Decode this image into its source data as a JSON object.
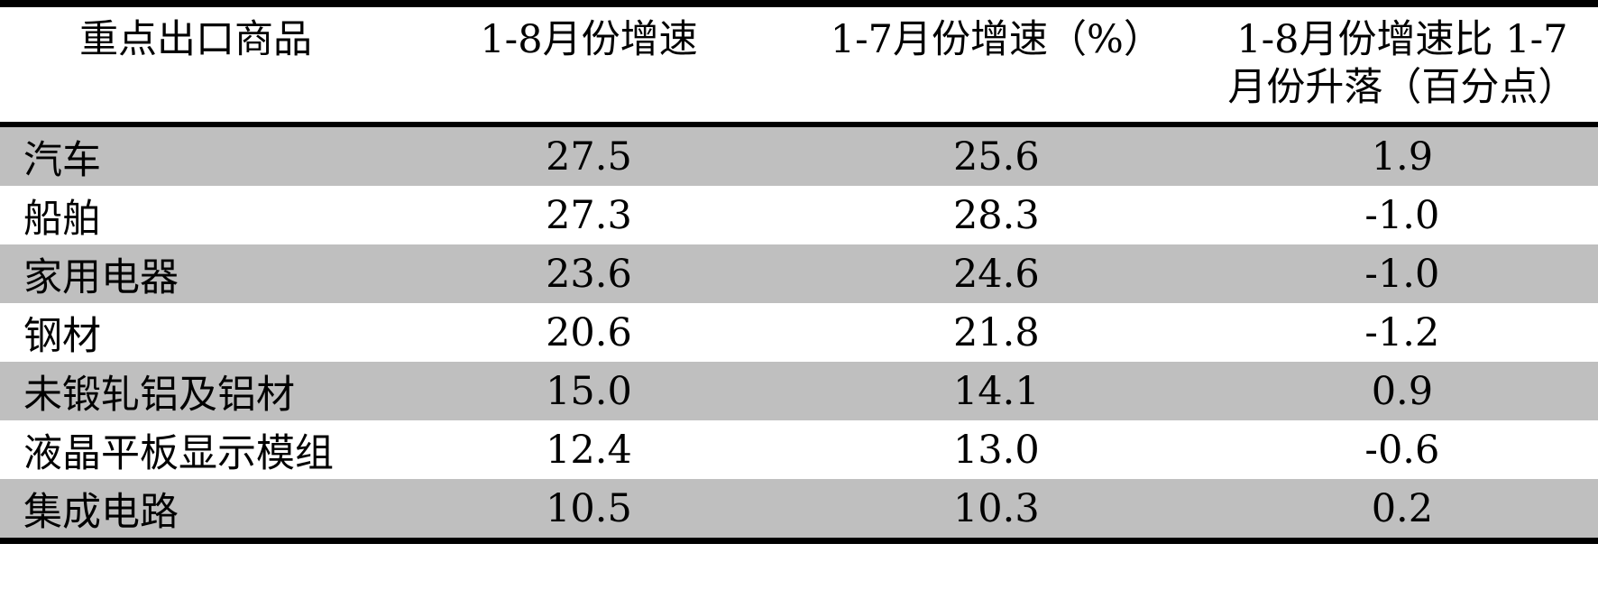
{
  "table": {
    "columns": [
      {
        "label": "重点出口商品"
      },
      {
        "label": "1-8月份增速"
      },
      {
        "label": "1-7月份增速（%）"
      },
      {
        "label": "1-8月份增速比 1-7\n月份升落（百分点）"
      }
    ],
    "rows": [
      {
        "commodity": "汽车",
        "growth_1_8": "27.5",
        "growth_1_7": "25.6",
        "change": "1.9"
      },
      {
        "commodity": "船舶",
        "growth_1_8": "27.3",
        "growth_1_7": "28.3",
        "change": "-1.0"
      },
      {
        "commodity": "家用电器",
        "growth_1_8": "23.6",
        "growth_1_7": "24.6",
        "change": "-1.0"
      },
      {
        "commodity": "钢材",
        "growth_1_8": "20.6",
        "growth_1_7": "21.8",
        "change": "-1.2"
      },
      {
        "commodity": "未锻轧铝及铝材",
        "growth_1_8": "15.0",
        "growth_1_7": "14.1",
        "change": "0.9"
      },
      {
        "commodity": "液晶平板显示模组",
        "growth_1_8": "12.4",
        "growth_1_7": "13.0",
        "change": "-0.6"
      },
      {
        "commodity": "集成电路",
        "growth_1_8": "10.5",
        "growth_1_7": "10.3",
        "change": "0.2"
      }
    ]
  },
  "colors": {
    "row_shade": "#bfbfbf",
    "border": "#000000",
    "background": "#ffffff",
    "text": "#000000"
  },
  "chart_data": {
    "type": "table",
    "title": "",
    "columns": [
      "重点出口商品",
      "1-8月份增速",
      "1-7月份增速（%）",
      "1-8月份增速比1-7月份升落（百分点）"
    ],
    "rows": [
      [
        "汽车",
        27.5,
        25.6,
        1.9
      ],
      [
        "船舶",
        27.3,
        28.3,
        -1.0
      ],
      [
        "家用电器",
        23.6,
        24.6,
        -1.0
      ],
      [
        "钢材",
        20.6,
        21.8,
        -1.2
      ],
      [
        "未锻轧铝及铝材",
        15.0,
        14.1,
        0.9
      ],
      [
        "液晶平板显示模组",
        12.4,
        13.0,
        -0.6
      ],
      [
        "集成电路",
        10.5,
        10.3,
        0.2
      ]
    ]
  }
}
